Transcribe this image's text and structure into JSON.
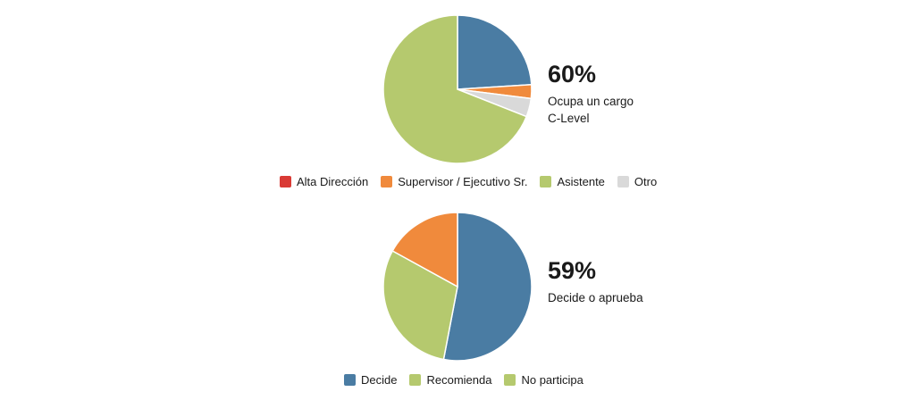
{
  "chart_data": [
    {
      "type": "pie",
      "categories": [
        "Alta Dirección",
        "Supervisor / Ejecutivo Sr.",
        "Asistente",
        "Otro"
      ],
      "values": [
        24,
        3,
        69,
        4
      ],
      "colors": [
        "#d93a35",
        "#f08a3c",
        "#b5c96e",
        "#d9d9d9"
      ],
      "slice_colors": [
        "#4a7ca3",
        "#f08a3c",
        "#d9d9d9",
        "#b5c96e"
      ],
      "slice_order": [
        "Alta Dirección",
        "Supervisor / Ejecutivo Sr.",
        "Otro",
        "Asistente"
      ],
      "slice_values": [
        24,
        3,
        4,
        69
      ],
      "highlight_value": "60%",
      "highlight_label": "Ocupa un cargo\nC-Level",
      "legend_position": "bottom"
    },
    {
      "type": "pie",
      "categories": [
        "Decide",
        "Recomienda",
        "No participa"
      ],
      "values": [
        53,
        30,
        17
      ],
      "colors": [
        "#4a7ca3",
        "#b5c96e",
        "#b5c96e"
      ],
      "slice_colors": [
        "#4a7ca3",
        "#b5c96e",
        "#f08a3c"
      ],
      "slice_order": [
        "Decide",
        "Recomienda",
        "No participa"
      ],
      "slice_values": [
        53,
        30,
        17
      ],
      "highlight_value": "59%",
      "highlight_label": "Decide o aprueba",
      "legend_position": "bottom"
    }
  ]
}
